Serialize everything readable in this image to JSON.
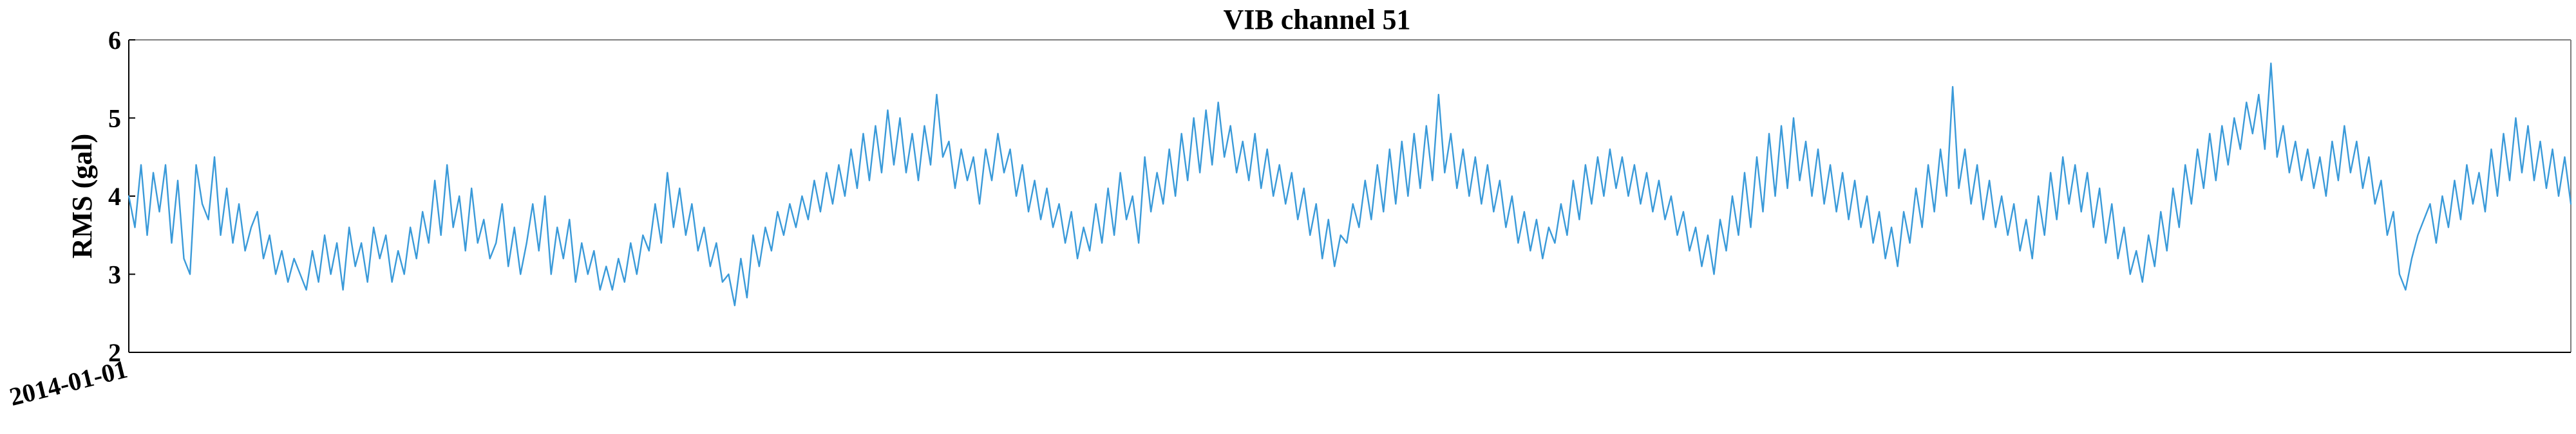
{
  "chart_data": {
    "type": "line",
    "title": "VIB channel 51",
    "xlabel": "",
    "ylabel": "RMS (gal)",
    "ylim": [
      2,
      6
    ],
    "y_ticks": [
      2,
      3,
      4,
      5,
      6
    ],
    "x_tick_labels": [
      "2014-01-01"
    ],
    "grid": false,
    "legend": "none",
    "line_color": "#3a9ad9",
    "series": [
      {
        "name": "",
        "values": [
          4.0,
          3.6,
          4.4,
          3.5,
          4.3,
          3.8,
          4.4,
          3.4,
          4.2,
          3.2,
          3.0,
          4.4,
          3.9,
          3.7,
          4.5,
          3.5,
          4.1,
          3.4,
          3.9,
          3.3,
          3.6,
          3.8,
          3.2,
          3.5,
          3.0,
          3.3,
          2.9,
          3.2,
          3.0,
          2.8,
          3.3,
          2.9,
          3.5,
          3.0,
          3.4,
          2.8,
          3.6,
          3.1,
          3.4,
          2.9,
          3.6,
          3.2,
          3.5,
          2.9,
          3.3,
          3.0,
          3.6,
          3.2,
          3.8,
          3.4,
          4.2,
          3.5,
          4.4,
          3.6,
          4.0,
          3.3,
          4.1,
          3.4,
          3.7,
          3.2,
          3.4,
          3.9,
          3.1,
          3.6,
          3.0,
          3.4,
          3.9,
          3.3,
          4.0,
          3.0,
          3.6,
          3.2,
          3.7,
          2.9,
          3.4,
          3.0,
          3.3,
          2.8,
          3.1,
          2.8,
          3.2,
          2.9,
          3.4,
          3.0,
          3.5,
          3.3,
          3.9,
          3.4,
          4.3,
          3.6,
          4.1,
          3.5,
          3.9,
          3.3,
          3.6,
          3.1,
          3.4,
          2.9,
          3.0,
          2.6,
          3.2,
          2.7,
          3.5,
          3.1,
          3.6,
          3.3,
          3.8,
          3.5,
          3.9,
          3.6,
          4.0,
          3.7,
          4.2,
          3.8,
          4.3,
          3.9,
          4.4,
          4.0,
          4.6,
          4.1,
          4.8,
          4.2,
          4.9,
          4.3,
          5.1,
          4.4,
          5.0,
          4.3,
          4.8,
          4.2,
          4.9,
          4.4,
          5.3,
          4.5,
          4.7,
          4.1,
          4.6,
          4.2,
          4.5,
          3.9,
          4.6,
          4.2,
          4.8,
          4.3,
          4.6,
          4.0,
          4.4,
          3.8,
          4.2,
          3.7,
          4.1,
          3.6,
          3.9,
          3.4,
          3.8,
          3.2,
          3.6,
          3.3,
          3.9,
          3.4,
          4.1,
          3.5,
          4.3,
          3.7,
          4.0,
          3.4,
          4.5,
          3.8,
          4.3,
          3.9,
          4.6,
          4.0,
          4.8,
          4.2,
          5.0,
          4.3,
          5.1,
          4.4,
          5.2,
          4.5,
          4.9,
          4.3,
          4.7,
          4.2,
          4.8,
          4.1,
          4.6,
          4.0,
          4.4,
          3.9,
          4.3,
          3.7,
          4.1,
          3.5,
          3.9,
          3.2,
          3.7,
          3.1,
          3.5,
          3.4,
          3.9,
          3.6,
          4.2,
          3.7,
          4.4,
          3.8,
          4.6,
          3.9,
          4.7,
          4.0,
          4.8,
          4.1,
          4.9,
          4.2,
          5.3,
          4.3,
          4.8,
          4.1,
          4.6,
          4.0,
          4.5,
          3.9,
          4.4,
          3.8,
          4.2,
          3.6,
          4.0,
          3.4,
          3.8,
          3.3,
          3.7,
          3.2,
          3.6,
          3.4,
          3.9,
          3.5,
          4.2,
          3.7,
          4.4,
          3.9,
          4.5,
          4.0,
          4.6,
          4.1,
          4.5,
          4.0,
          4.4,
          3.9,
          4.3,
          3.8,
          4.2,
          3.7,
          4.0,
          3.5,
          3.8,
          3.3,
          3.6,
          3.1,
          3.5,
          3.0,
          3.7,
          3.3,
          4.0,
          3.5,
          4.3,
          3.6,
          4.5,
          3.8,
          4.8,
          4.0,
          4.9,
          4.1,
          5.0,
          4.2,
          4.7,
          4.0,
          4.6,
          3.9,
          4.4,
          3.8,
          4.3,
          3.7,
          4.2,
          3.6,
          4.0,
          3.4,
          3.8,
          3.2,
          3.6,
          3.1,
          3.8,
          3.4,
          4.1,
          3.6,
          4.4,
          3.8,
          4.6,
          4.0,
          5.4,
          4.1,
          4.6,
          3.9,
          4.4,
          3.7,
          4.2,
          3.6,
          4.0,
          3.5,
          3.9,
          3.3,
          3.7,
          3.2,
          4.0,
          3.5,
          4.3,
          3.7,
          4.5,
          3.9,
          4.4,
          3.8,
          4.3,
          3.6,
          4.1,
          3.4,
          3.9,
          3.2,
          3.6,
          3.0,
          3.3,
          2.9,
          3.5,
          3.1,
          3.8,
          3.3,
          4.1,
          3.6,
          4.4,
          3.9,
          4.6,
          4.1,
          4.8,
          4.2,
          4.9,
          4.4,
          5.0,
          4.6,
          5.2,
          4.8,
          5.3,
          4.6,
          5.7,
          4.5,
          4.9,
          4.3,
          4.7,
          4.2,
          4.6,
          4.1,
          4.5,
          4.0,
          4.7,
          4.2,
          4.9,
          4.3,
          4.7,
          4.1,
          4.5,
          3.9,
          4.2,
          3.5,
          3.8,
          3.0,
          2.8,
          3.2,
          3.5,
          3.7,
          3.9,
          3.4,
          4.0,
          3.6,
          4.2,
          3.7,
          4.4,
          3.9,
          4.3,
          3.8,
          4.6,
          4.0,
          4.8,
          4.2,
          5.0,
          4.3,
          4.9,
          4.2,
          4.7,
          4.1,
          4.6,
          4.0,
          4.5,
          3.9
        ]
      }
    ]
  }
}
